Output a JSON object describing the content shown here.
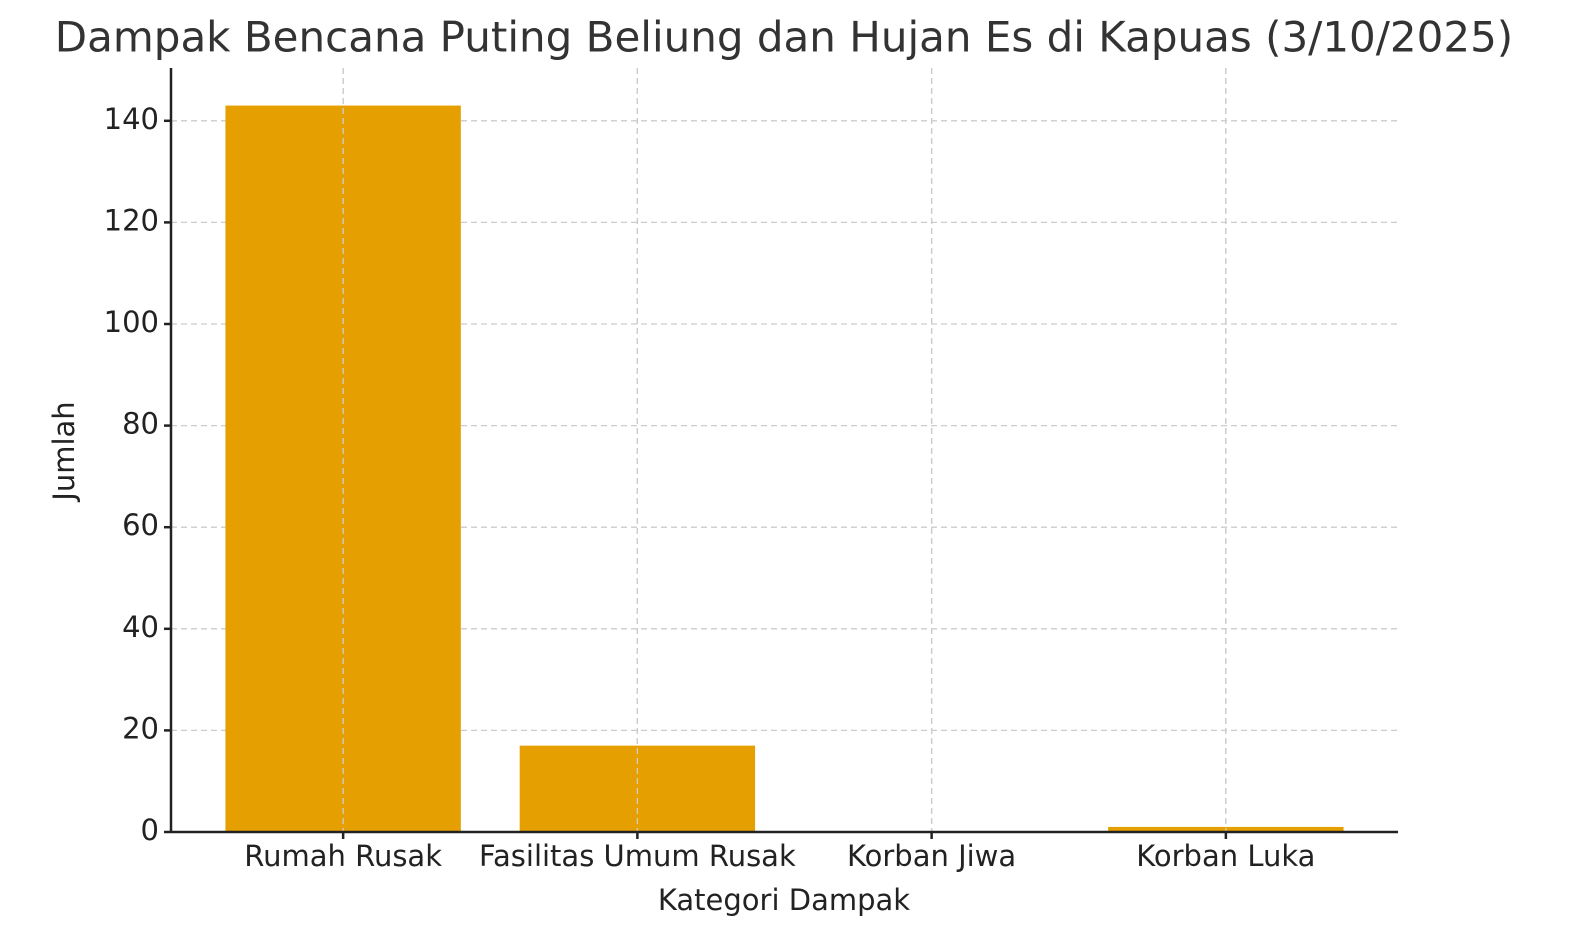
{
  "chart_data": {
    "type": "bar",
    "title": "Dampak Bencana Puting Beliung dan Hujan Es di Kapuas (3/10/2025)",
    "x_label": "Kategori Dampak",
    "y_label": "Jumlah",
    "categories": [
      "Rumah Rusak",
      "Fasilitas Umum Rusak",
      "Korban Jiwa",
      "Korban Luka"
    ],
    "values": [
      143,
      17,
      0,
      1
    ],
    "color": "#e69f00",
    "ylim": [
      0,
      150
    ],
    "yticks": [
      0,
      20,
      40,
      60,
      80,
      100,
      120,
      140
    ],
    "grid": true
  }
}
